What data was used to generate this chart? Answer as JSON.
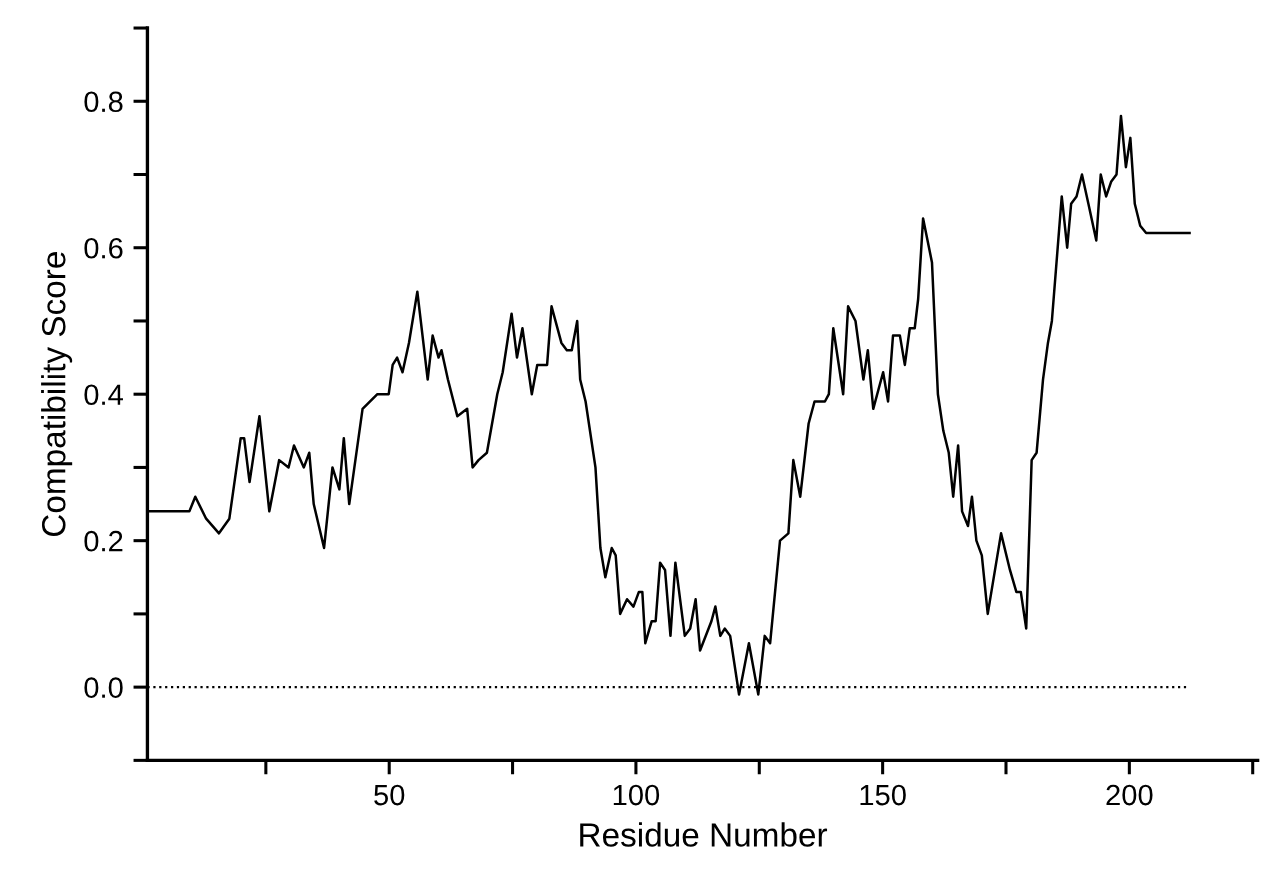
{
  "chart_data": {
    "type": "line",
    "xlabel": "Residue Number",
    "ylabel": "Compatibility Score",
    "xlim": [
      1,
      226
    ],
    "ylim": [
      -0.1,
      0.9
    ],
    "xticks": [
      {
        "value": 25,
        "label": null
      },
      50,
      {
        "value": 75,
        "label": null
      },
      100,
      {
        "value": 125,
        "label": null
      },
      150,
      {
        "value": 175,
        "label": null
      },
      200,
      {
        "value": 225,
        "label": null
      }
    ],
    "yticks": [
      {
        "value": -0.1,
        "label": null
      },
      {
        "value": 0,
        "label": "0.0"
      },
      {
        "value": 0.1,
        "label": null
      },
      0.2,
      {
        "value": 0.3,
        "label": null
      },
      0.4,
      {
        "value": 0.5,
        "label": null
      },
      0.6,
      {
        "value": 0.7,
        "label": null
      },
      0.8,
      {
        "value": 0.9,
        "label": null
      }
    ],
    "grid": false,
    "marker": "none",
    "line_style": "solid",
    "ref_lines": [
      {
        "axis": "y",
        "value": 0,
        "label": null,
        "color": "#000000",
        "line_style": "dotted"
      }
    ],
    "series": [
      {
        "color": "#000000",
        "x": [
          1,
          9.5,
          10.7,
          12.9,
          15.5,
          17.6,
          19.9,
          20.6,
          21.7,
          23.7,
          25.7,
          27.7,
          29.6,
          30.7,
          32.7,
          33.8,
          34.7,
          36.8,
          38.5,
          39.9,
          40.8,
          41.9,
          44.6,
          47.6,
          49.9,
          50.7,
          51.6,
          52.7,
          54,
          55.7,
          57.8,
          58.8,
          60,
          60.6,
          61.9,
          63.8,
          65.8,
          66.9,
          68.1,
          69.8,
          71.9,
          73,
          74.8,
          75.9,
          77,
          78.9,
          80,
          82,
          82.9,
          84.9,
          86,
          87,
          88.1,
          88.7,
          89.8,
          91.8,
          92.8,
          93.8,
          95.1,
          95.9,
          96.8,
          98.2,
          99.5,
          100.6,
          101.3,
          101.9,
          103.2,
          104,
          104.9,
          105.9,
          107,
          108,
          109.9,
          111,
          112.1,
          113,
          115.3,
          116.1,
          117.1,
          118,
          119.1,
          120.9,
          122.9,
          124.8,
          126.1,
          127.2,
          129.2,
          130.9,
          131.9,
          133.3,
          135,
          136.2,
          138.3,
          139.1,
          140,
          142,
          143,
          144.5,
          146.1,
          147,
          148.1,
          150.1,
          151.1,
          152.1,
          153.5,
          154.5,
          155.5,
          156.5,
          157.2,
          158.2,
          160,
          161.2,
          162.3,
          163.4,
          164.3,
          165.3,
          166.1,
          167.3,
          168.1,
          169,
          170.1,
          171.3,
          174,
          175.8,
          177.1,
          178,
          179.1,
          180.2,
          181.2,
          182.5,
          183.5,
          184.3,
          186.3,
          187.4,
          188.2,
          189.3,
          190.4,
          191.7,
          193.3,
          194.2,
          195.3,
          196.3,
          197.4,
          198.3,
          199.3,
          200.2,
          201.1,
          202.2,
          203.4,
          212.2
        ],
        "values": [
          0.24,
          0.24,
          0.26,
          0.23,
          0.21,
          0.23,
          0.34,
          0.34,
          0.28,
          0.37,
          0.24,
          0.31,
          0.3,
          0.33,
          0.3,
          0.32,
          0.25,
          0.19,
          0.3,
          0.27,
          0.34,
          0.25,
          0.38,
          0.4,
          0.4,
          0.44,
          0.45,
          0.43,
          0.47,
          0.54,
          0.42,
          0.48,
          0.45,
          0.46,
          0.42,
          0.37,
          0.38,
          0.3,
          0.31,
          0.32,
          0.4,
          0.43,
          0.51,
          0.45,
          0.49,
          0.4,
          0.44,
          0.44,
          0.52,
          0.47,
          0.46,
          0.46,
          0.5,
          0.42,
          0.39,
          0.3,
          0.19,
          0.15,
          0.19,
          0.18,
          0.1,
          0.12,
          0.11,
          0.13,
          0.13,
          0.06,
          0.09,
          0.09,
          0.17,
          0.16,
          0.07,
          0.17,
          0.07,
          0.08,
          0.12,
          0.05,
          0.09,
          0.11,
          0.07,
          0.08,
          0.07,
          -0.01,
          0.06,
          -0.01,
          0.07,
          0.06,
          0.2,
          0.21,
          0.31,
          0.26,
          0.36,
          0.39,
          0.39,
          0.4,
          0.49,
          0.4,
          0.52,
          0.5,
          0.42,
          0.46,
          0.38,
          0.43,
          0.39,
          0.48,
          0.48,
          0.44,
          0.49,
          0.49,
          0.53,
          0.64,
          0.58,
          0.4,
          0.35,
          0.32,
          0.26,
          0.33,
          0.24,
          0.22,
          0.26,
          0.2,
          0.18,
          0.1,
          0.21,
          0.16,
          0.13,
          0.13,
          0.08,
          0.31,
          0.32,
          0.42,
          0.47,
          0.5,
          0.67,
          0.6,
          0.66,
          0.67,
          0.7,
          0.66,
          0.61,
          0.7,
          0.67,
          0.69,
          0.7,
          0.78,
          0.71,
          0.75,
          0.66,
          0.63,
          0.62,
          0.62
        ]
      }
    ]
  }
}
